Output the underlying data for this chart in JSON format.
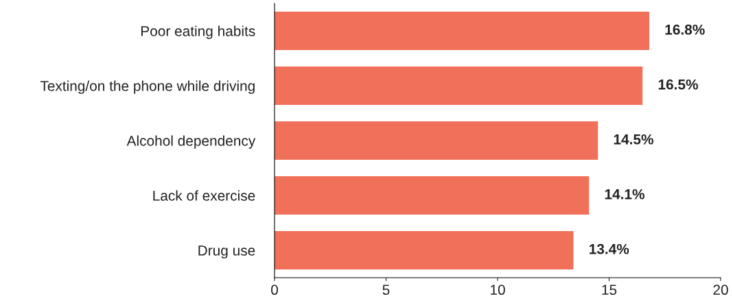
{
  "chart_data": {
    "type": "bar",
    "orientation": "horizontal",
    "categories": [
      "Poor eating habits",
      "Texting/on the phone while driving",
      "Alcohol dependency",
      "Lack of exercise",
      "Drug use"
    ],
    "values": [
      16.8,
      16.5,
      14.5,
      14.1,
      13.4
    ],
    "value_labels": [
      "16.8%",
      "16.5%",
      "14.5%",
      "14.1%",
      "13.4%"
    ],
    "color": "#f07059",
    "xlim": [
      0,
      20
    ],
    "xticks": [
      0,
      5,
      10,
      15,
      20
    ],
    "grid": false,
    "legend": false
  }
}
